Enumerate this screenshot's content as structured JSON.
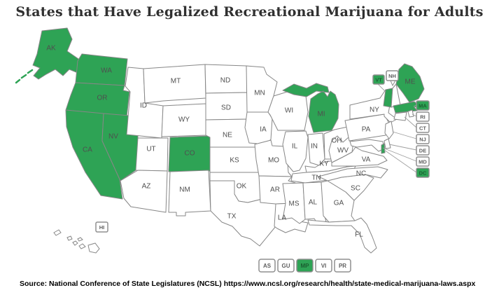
{
  "title": "States that Have Legalized Recreational Marijuana for Adults",
  "source": "Source:  National Conference of State Legislatures (NCSL)  https://www.ncsl.org/research/health/state-medical-marijuana-laws.aspx",
  "colors": {
    "legalized_fill": "#2EA355",
    "default_fill": "#FFFFFF",
    "state_border": "#878787",
    "state_label": "#4F4F4F",
    "badge_border": "#8F8F8F",
    "badge_text": "#5F5F5F",
    "badge_text_on_green": "#1B5E31",
    "leader_line": "#9F9F9F",
    "title_color": "#303030"
  },
  "map": {
    "states": [
      {
        "abbr": "AK",
        "legalized": true
      },
      {
        "abbr": "WA",
        "legalized": true
      },
      {
        "abbr": "OR",
        "legalized": true
      },
      {
        "abbr": "CA",
        "legalized": true
      },
      {
        "abbr": "NV",
        "legalized": true
      },
      {
        "abbr": "ID",
        "legalized": false
      },
      {
        "abbr": "MT",
        "legalized": false
      },
      {
        "abbr": "WY",
        "legalized": false
      },
      {
        "abbr": "UT",
        "legalized": false
      },
      {
        "abbr": "CO",
        "legalized": true
      },
      {
        "abbr": "AZ",
        "legalized": false
      },
      {
        "abbr": "NM",
        "legalized": false
      },
      {
        "abbr": "ND",
        "legalized": false
      },
      {
        "abbr": "SD",
        "legalized": false
      },
      {
        "abbr": "NE",
        "legalized": false
      },
      {
        "abbr": "KS",
        "legalized": false
      },
      {
        "abbr": "OK",
        "legalized": false
      },
      {
        "abbr": "TX",
        "legalized": false
      },
      {
        "abbr": "MN",
        "legalized": false
      },
      {
        "abbr": "IA",
        "legalized": false
      },
      {
        "abbr": "MO",
        "legalized": false
      },
      {
        "abbr": "AR",
        "legalized": false
      },
      {
        "abbr": "LA",
        "legalized": false
      },
      {
        "abbr": "WI",
        "legalized": false
      },
      {
        "abbr": "IL",
        "legalized": false
      },
      {
        "abbr": "IN",
        "legalized": false
      },
      {
        "abbr": "MI",
        "legalized": true
      },
      {
        "abbr": "OH",
        "legalized": false
      },
      {
        "abbr": "KY",
        "legalized": false
      },
      {
        "abbr": "TN",
        "legalized": false
      },
      {
        "abbr": "MS",
        "legalized": false
      },
      {
        "abbr": "AL",
        "legalized": false
      },
      {
        "abbr": "GA",
        "legalized": false
      },
      {
        "abbr": "FL",
        "legalized": false
      },
      {
        "abbr": "SC",
        "legalized": false
      },
      {
        "abbr": "NC",
        "legalized": false
      },
      {
        "abbr": "VA",
        "legalized": false
      },
      {
        "abbr": "WV",
        "legalized": false
      },
      {
        "abbr": "PA",
        "legalized": false
      },
      {
        "abbr": "NY",
        "legalized": false
      },
      {
        "abbr": "ME",
        "legalized": true
      }
    ],
    "small_state_badges": [
      {
        "abbr": "VT",
        "legalized": true
      },
      {
        "abbr": "NH",
        "legalized": false
      },
      {
        "abbr": "MA",
        "legalized": true
      },
      {
        "abbr": "RI",
        "legalized": false
      },
      {
        "abbr": "CT",
        "legalized": false
      },
      {
        "abbr": "NJ",
        "legalized": false
      },
      {
        "abbr": "DE",
        "legalized": false
      },
      {
        "abbr": "MD",
        "legalized": false
      },
      {
        "abbr": "DC",
        "legalized": true
      },
      {
        "abbr": "HI",
        "legalized": false
      }
    ],
    "territory_badges": [
      {
        "abbr": "AS",
        "legalized": false
      },
      {
        "abbr": "GU",
        "legalized": false
      },
      {
        "abbr": "MP",
        "legalized": true
      },
      {
        "abbr": "VI",
        "legalized": false
      },
      {
        "abbr": "PR",
        "legalized": false
      }
    ]
  }
}
